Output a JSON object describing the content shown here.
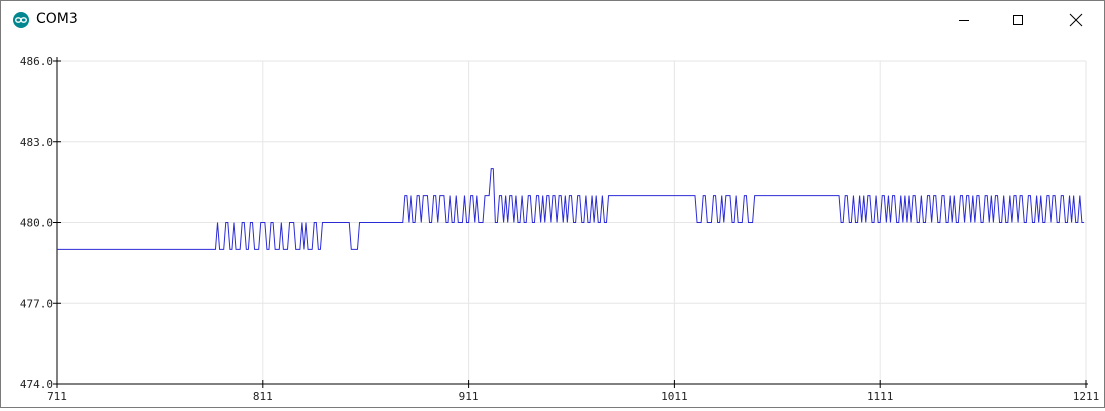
{
  "window": {
    "title": "COM3",
    "app_icon": "arduino-infinity-icon",
    "controls": [
      "minimize-icon",
      "maximize-icon",
      "close-icon"
    ]
  },
  "chart_data": {
    "type": "line",
    "title": "",
    "xlabel": "",
    "ylabel": "",
    "xlim": [
      711,
      1211
    ],
    "ylim": [
      474.0,
      486.0
    ],
    "x_ticks": [
      "711",
      "811",
      "911",
      "1011",
      "1111",
      "1211"
    ],
    "y_ticks": [
      "474.0",
      "477.0",
      "480.0",
      "483.0",
      "486.0"
    ],
    "grid": true,
    "line_color": "#2b2bd6",
    "series": [
      {
        "segments": [
          {
            "start": 711,
            "end": 788,
            "value": 479,
            "mode": "flat"
          },
          {
            "start": 788,
            "end": 840,
            "value": 479,
            "mode": "toggle",
            "alt": 480,
            "step": 3,
            "seed": 3
          },
          {
            "start": 840,
            "end": 854,
            "value": 480,
            "mode": "flat"
          },
          {
            "start": 854,
            "end": 858,
            "value": 479,
            "mode": "flat"
          },
          {
            "start": 858,
            "end": 878,
            "value": 480,
            "mode": "flat"
          },
          {
            "start": 878,
            "end": 922,
            "value": 480,
            "mode": "toggle",
            "alt": 481,
            "step": 3,
            "seed": 7
          },
          {
            "start": 922,
            "end": 924,
            "value": 482,
            "mode": "flat"
          },
          {
            "start": 924,
            "end": 980,
            "value": 480,
            "mode": "toggle",
            "alt": 481,
            "step": 2,
            "seed": 11
          },
          {
            "start": 980,
            "end": 1020,
            "value": 481,
            "mode": "flat"
          },
          {
            "start": 1020,
            "end": 1050,
            "value": 481,
            "mode": "toggle",
            "alt": 480,
            "step": 3,
            "seed": 5
          },
          {
            "start": 1050,
            "end": 1090,
            "value": 481,
            "mode": "flat"
          },
          {
            "start": 1090,
            "end": 1211,
            "value": 481,
            "mode": "toggle",
            "alt": 480,
            "step": 2,
            "seed": 13
          }
        ]
      }
    ]
  }
}
